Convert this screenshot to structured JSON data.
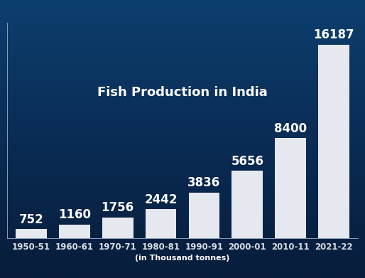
{
  "chart_data": {
    "type": "bar",
    "title": "Fish Production in India",
    "x_label": "(in Thousand tonnes)",
    "categories": [
      "1950-51",
      "1960-61",
      "1970-71",
      "1980-81",
      "1990-91",
      "2000-01",
      "2010-11",
      "2021-22"
    ],
    "values": [
      752,
      1160,
      1756,
      2442,
      3836,
      5656,
      8400,
      16187
    ],
    "color": "#e6e8ef",
    "ylim": [
      0,
      18000
    ],
    "data_labels": true,
    "tick_labels": "x"
  }
}
